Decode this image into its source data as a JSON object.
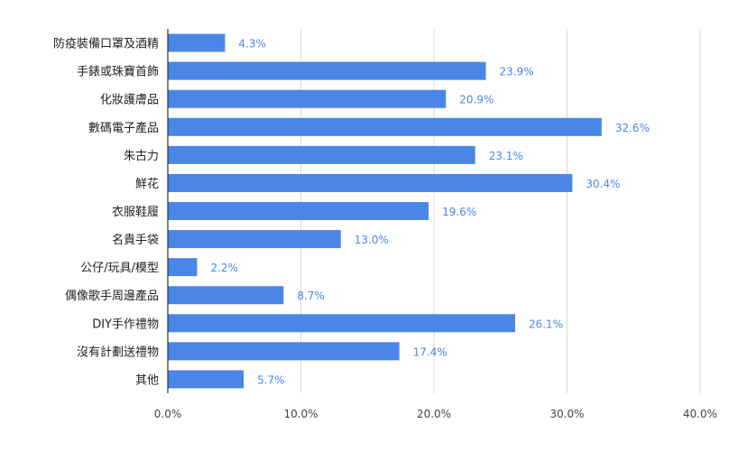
{
  "chart_data": {
    "type": "bar",
    "orientation": "horizontal",
    "categories": [
      "防疫裝備口罩及酒精",
      "手錶或珠寶首飾",
      "化妝護膚品",
      "數碼電子產品",
      "朱古力",
      "鮮花",
      "衣服鞋履",
      "名貴手袋",
      "公仔/玩具/模型",
      "偶像歌手周邊產品",
      "DIY手作禮物",
      "沒有計劃送禮物",
      "其他"
    ],
    "values": [
      4.3,
      23.9,
      20.9,
      32.6,
      23.1,
      30.4,
      19.6,
      13.0,
      2.2,
      8.7,
      26.1,
      17.4,
      5.7
    ],
    "value_labels": [
      "4.3%",
      "23.9%",
      "20.9%",
      "32.6%",
      "23.1%",
      "30.4%",
      "19.6%",
      "13.0%",
      "2.2%",
      "8.7%",
      "26.1%",
      "17.4%",
      "5.7%"
    ],
    "xlim": [
      0,
      40
    ],
    "xticks": [
      0,
      10,
      20,
      30,
      40
    ],
    "xtick_labels": [
      "0.0%",
      "10.0%",
      "20.0%",
      "30.0%",
      "40.0%"
    ],
    "bar_color": "#4a86e8",
    "label_color": "#4a86e8",
    "grid": true,
    "title": "",
    "xlabel": "",
    "ylabel": ""
  }
}
